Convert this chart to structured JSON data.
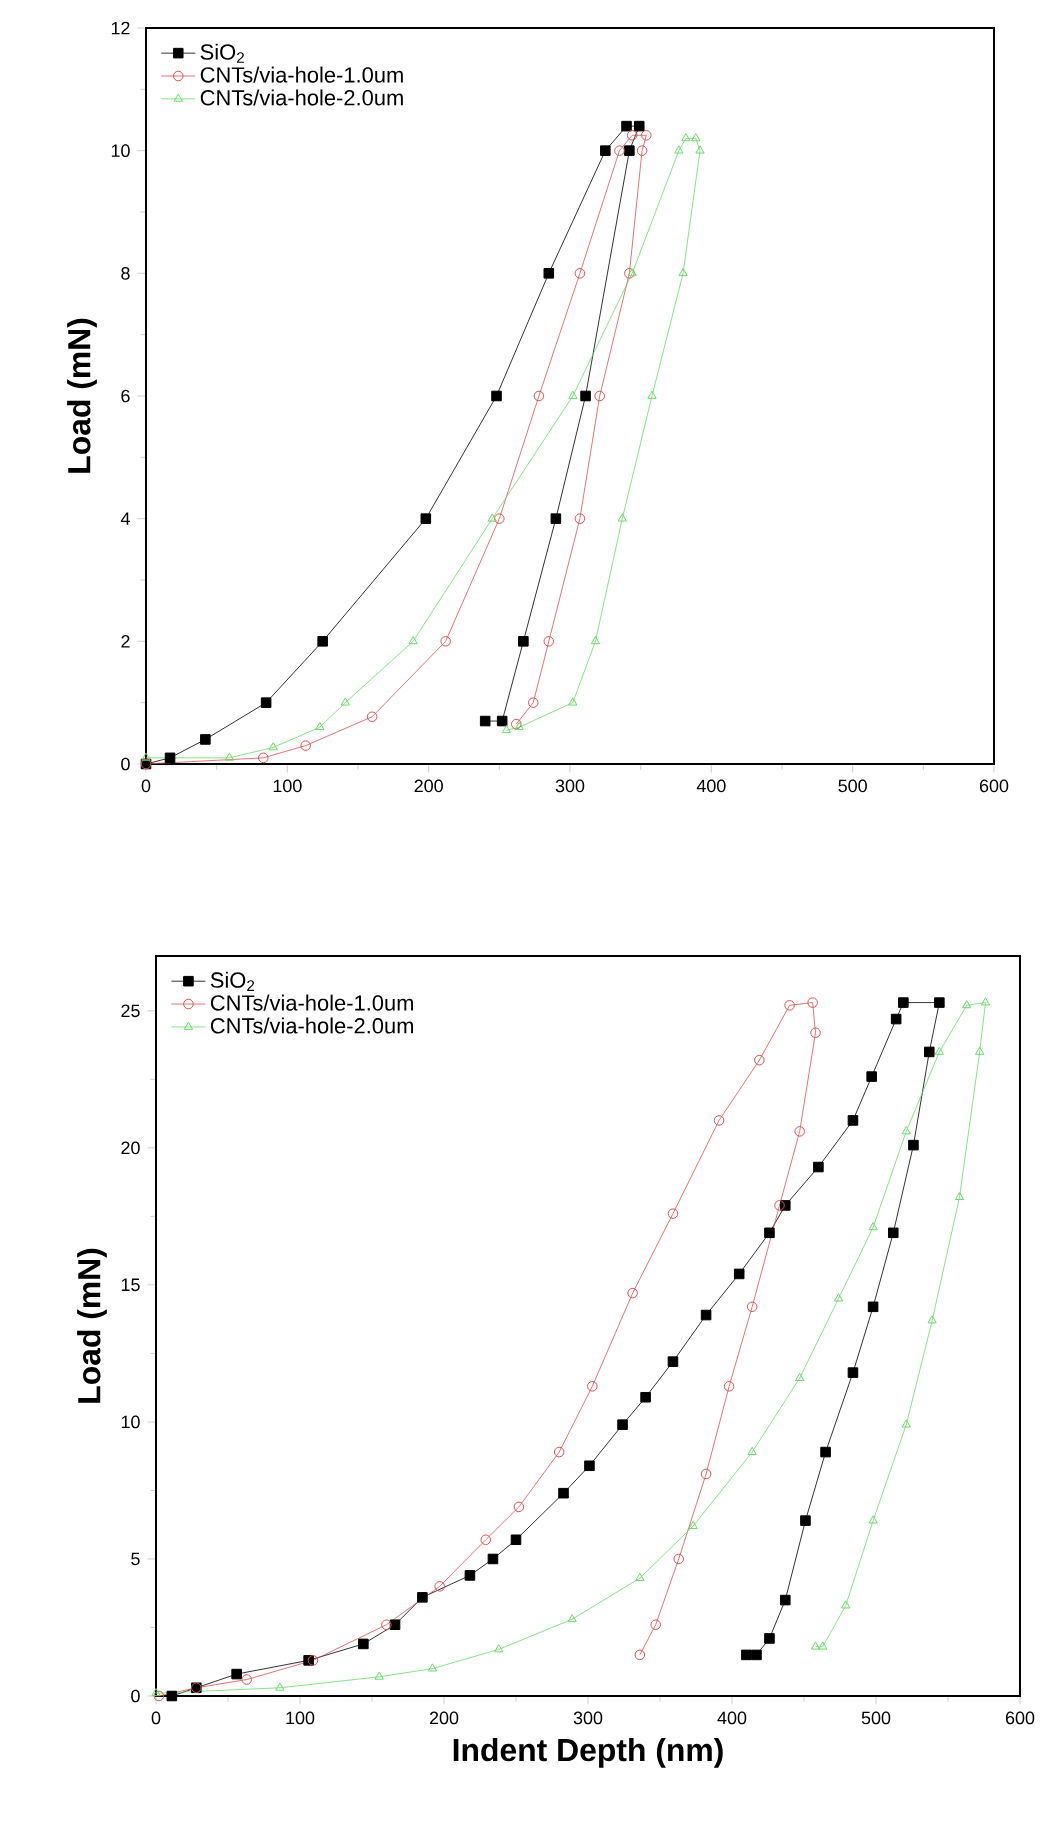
{
  "chart_data": [
    {
      "type": "line",
      "ylabel": "Load (mN)",
      "xlim": [
        0,
        600
      ],
      "ylim": [
        0,
        12
      ],
      "xticks": [
        0,
        100,
        200,
        300,
        400,
        500,
        600
      ],
      "yticks": [
        0,
        2,
        4,
        6,
        8,
        10,
        12
      ],
      "legend": "top left",
      "grid": false,
      "line_style": "solid",
      "series": [
        {
          "name": "SiO$_{2}$",
          "color": "#000000",
          "marker": "square",
          "x": [
            0,
            17,
            42,
            85,
            125,
            198,
            248,
            285,
            325,
            340,
            349,
            342,
            311,
            290,
            267,
            252,
            240
          ],
          "values": [
            0,
            0.1,
            0.4,
            1,
            2,
            4,
            6,
            8,
            10,
            10.4,
            10.4,
            10,
            6,
            4,
            2,
            0.7,
            0.7
          ]
        },
        {
          "name": "CNTs/via-hole-1.0um",
          "color": "#e05050",
          "marker": "circle",
          "x": [
            0,
            83,
            113,
            160,
            212,
            250,
            278,
            307,
            335,
            344,
            354,
            351,
            342,
            321,
            307,
            285,
            274,
            262
          ],
          "values": [
            0,
            0.1,
            0.3,
            0.77,
            2,
            4,
            6,
            8,
            10,
            10.25,
            10.25,
            10,
            8,
            6,
            4,
            2,
            1,
            0.65
          ]
        },
        {
          "name": "CNTs/via-hole-2.0um",
          "color": "#66dd66",
          "marker": "triangle",
          "x": [
            0,
            59,
            90,
            123,
            141,
            189,
            245,
            302,
            344,
            377,
            382,
            389,
            392,
            380,
            358,
            337,
            318,
            302,
            264,
            255
          ],
          "values": [
            0.1,
            0.1,
            0.27,
            0.6,
            1,
            2,
            4,
            6,
            8,
            10,
            10.2,
            10.2,
            10,
            8,
            6,
            4,
            2,
            1,
            0.6,
            0.55
          ]
        }
      ]
    },
    {
      "type": "line",
      "xlabel": "Indent Depth (nm)",
      "ylabel": "Load (mN)",
      "xlim": [
        0,
        600
      ],
      "ylim": [
        0,
        27
      ],
      "xticks": [
        0,
        100,
        200,
        300,
        400,
        500,
        600
      ],
      "yticks": [
        0,
        5,
        10,
        15,
        20,
        25
      ],
      "legend": "top left",
      "grid": false,
      "line_style": "solid",
      "series": [
        {
          "name": "SiO$_{2}$",
          "color": "#000000",
          "marker": "square",
          "x": [
            11,
            28,
            56,
            106,
            144,
            166,
            185,
            218,
            234,
            250,
            283,
            301,
            324,
            340,
            359,
            382,
            405,
            426,
            437,
            460,
            484,
            497,
            514,
            519,
            544,
            537,
            526,
            512,
            498,
            484,
            465,
            451,
            437,
            426,
            417,
            410
          ],
          "values": [
            0,
            0.3,
            0.8,
            1.3,
            1.9,
            2.6,
            3.6,
            4.4,
            5,
            5.7,
            7.4,
            8.4,
            9.9,
            10.9,
            12.2,
            13.9,
            15.4,
            16.9,
            17.9,
            19.3,
            21,
            22.6,
            24.7,
            25.3,
            25.3,
            23.5,
            20.1,
            16.9,
            14.2,
            11.8,
            8.9,
            6.4,
            3.5,
            2.1,
            1.5,
            1.5
          ]
        },
        {
          "name": "CNTs/via-hole-1.0um",
          "color": "#e05050",
          "marker": "circle",
          "x": [
            2,
            28,
            63,
            109,
            160,
            197,
            229,
            252,
            280,
            303,
            331,
            359,
            391,
            419,
            440,
            456,
            458,
            447,
            433,
            414,
            398,
            382,
            363,
            347,
            336
          ],
          "values": [
            0,
            0.3,
            0.6,
            1.3,
            2.6,
            4,
            5.7,
            6.9,
            8.9,
            11.3,
            14.7,
            17.6,
            21,
            23.2,
            25.2,
            25.3,
            24.2,
            20.6,
            17.9,
            14.2,
            11.3,
            8.1,
            5,
            2.6,
            1.5
          ]
        },
        {
          "name": "CNTs/via-hole-2.0um",
          "color": "#66dd66",
          "marker": "triangle",
          "x": [
            0,
            86,
            155,
            192,
            238,
            289,
            336,
            373,
            414,
            447,
            474,
            498,
            521,
            544,
            563,
            576,
            572,
            558,
            539,
            521,
            498,
            479,
            463,
            458
          ],
          "values": [
            0.1,
            0.3,
            0.7,
            1,
            1.7,
            2.8,
            4.3,
            6.2,
            8.9,
            11.6,
            14.5,
            17.1,
            20.6,
            23.5,
            25.2,
            25.3,
            23.5,
            18.2,
            13.7,
            9.9,
            6.4,
            3.3,
            1.8,
            1.8
          ]
        }
      ]
    }
  ]
}
